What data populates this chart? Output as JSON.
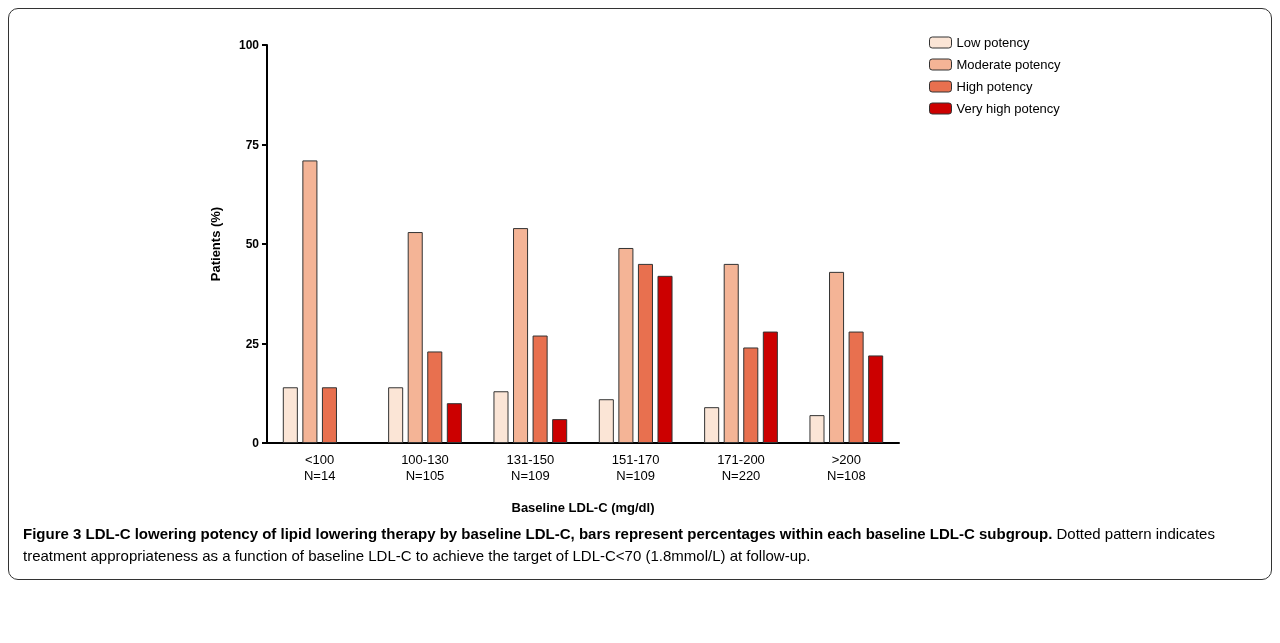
{
  "chart_data": {
    "type": "bar",
    "title": "Figure 3 LDL-C lowering potency of lipid lowering therapy by baseline LDL-C, bars represent percentages within each baseline LDL-C subgroup.",
    "annotations": [
      "Dotted pattern indicates treatment appropriateness as a function of baseline LDL-C to achieve the target of LDL-C<70 (1.8mmol/L) at follow-up."
    ],
    "xlabel": "Baseline LDL-C (mg/dl)",
    "ylabel": "Patients (%)",
    "categories": [
      "<100\nN=14",
      "100-130\nN=105",
      "131-150\nN=109",
      "151-170\nN=109",
      "171-200\nN=220",
      ">200\nN=108"
    ],
    "series": [
      {
        "name": "Low potency",
        "color": "#fbe5d6",
        "values": [
          14,
          14,
          13,
          11,
          9,
          7
        ]
      },
      {
        "name": "Moderate potency",
        "color": "#f4b496",
        "values": [
          71,
          53,
          54,
          49,
          45,
          43
        ]
      },
      {
        "name": "High potency",
        "color": "#e8704f",
        "values": [
          14,
          23,
          27,
          45,
          24,
          28
        ]
      },
      {
        "name": "Very high potency",
        "color": "#cc0000",
        "values": [
          null,
          10,
          6,
          42,
          28,
          22
        ]
      }
    ],
    "ylim": [
      0,
      100
    ],
    "yticks": [
      0,
      25,
      50,
      75,
      100
    ],
    "grid": false,
    "legend": "top right"
  }
}
